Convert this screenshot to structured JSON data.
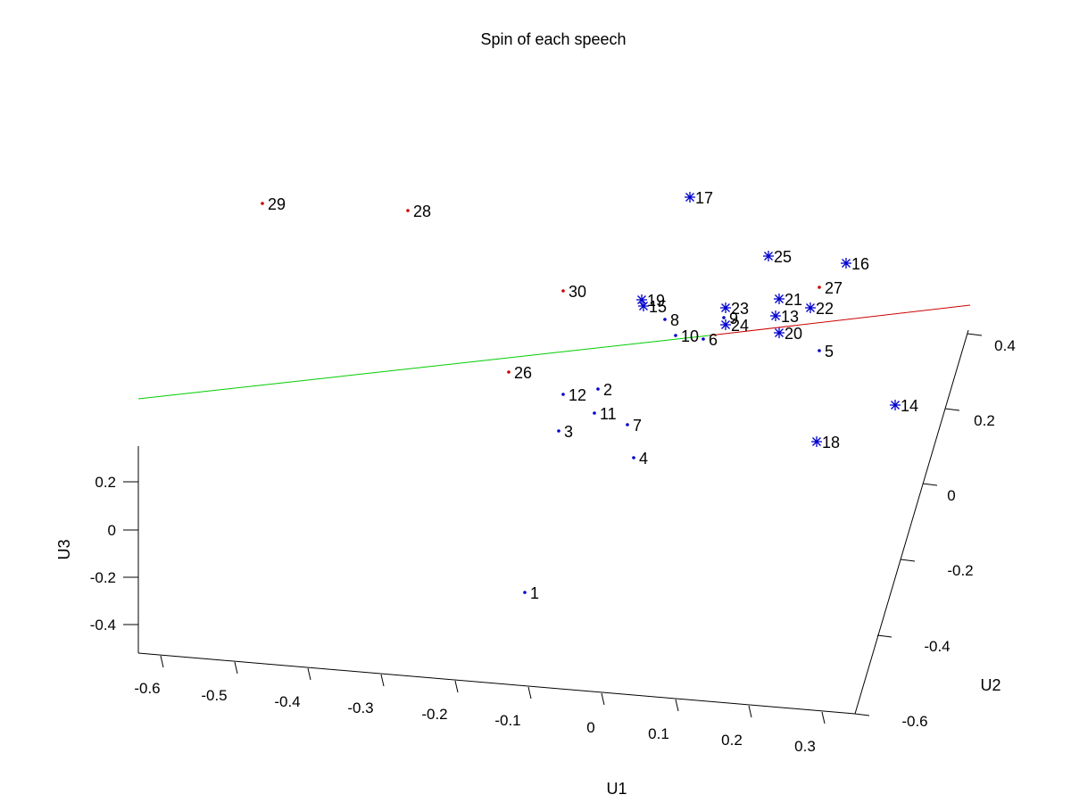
{
  "chart_data": {
    "type": "scatter",
    "title": "Spin of each speech",
    "xlabel": "U1",
    "ylabel": "U2",
    "zlabel": "U3",
    "x_ticks": [
      "-0.6",
      "-0.5",
      "-0.4",
      "-0.3",
      "-0.2",
      "-0.1",
      "0",
      "0.1",
      "0.2",
      "0.3"
    ],
    "y_ticks": [
      "-0.6",
      "-0.4",
      "-0.2",
      "0",
      "0.2",
      "0.4"
    ],
    "z_ticks": [
      "0.2",
      "0",
      "-0.2",
      "-0.4"
    ],
    "view": "3d",
    "grid": false,
    "colors": {
      "dot_blue": "#0000cc",
      "dot_red": "#cc0000",
      "star_blue": "#0000cc",
      "line_green": "#00cc00",
      "line_red": "#cc0000",
      "axes": "#000000"
    },
    "points": [
      {
        "label": "1",
        "marker": "dot",
        "color": "blue"
      },
      {
        "label": "2",
        "marker": "dot",
        "color": "blue"
      },
      {
        "label": "3",
        "marker": "dot",
        "color": "blue"
      },
      {
        "label": "4",
        "marker": "dot",
        "color": "blue"
      },
      {
        "label": "5",
        "marker": "dot",
        "color": "blue"
      },
      {
        "label": "6",
        "marker": "dot",
        "color": "blue"
      },
      {
        "label": "7",
        "marker": "dot",
        "color": "blue"
      },
      {
        "label": "8",
        "marker": "dot",
        "color": "blue"
      },
      {
        "label": "9",
        "marker": "dot",
        "color": "blue"
      },
      {
        "label": "10",
        "marker": "dot",
        "color": "blue"
      },
      {
        "label": "11",
        "marker": "dot",
        "color": "blue"
      },
      {
        "label": "12",
        "marker": "dot",
        "color": "blue"
      },
      {
        "label": "13",
        "marker": "star",
        "color": "blue"
      },
      {
        "label": "14",
        "marker": "star",
        "color": "blue"
      },
      {
        "label": "15",
        "marker": "star",
        "color": "blue"
      },
      {
        "label": "16",
        "marker": "star",
        "color": "blue"
      },
      {
        "label": "17",
        "marker": "star",
        "color": "blue"
      },
      {
        "label": "18",
        "marker": "star",
        "color": "blue"
      },
      {
        "label": "19",
        "marker": "star",
        "color": "blue"
      },
      {
        "label": "20",
        "marker": "star",
        "color": "blue"
      },
      {
        "label": "21",
        "marker": "star",
        "color": "blue"
      },
      {
        "label": "22",
        "marker": "star",
        "color": "blue"
      },
      {
        "label": "23",
        "marker": "star",
        "color": "blue"
      },
      {
        "label": "24",
        "marker": "star",
        "color": "blue"
      },
      {
        "label": "25",
        "marker": "star",
        "color": "blue"
      },
      {
        "label": "26",
        "marker": "dot",
        "color": "red"
      },
      {
        "label": "27",
        "marker": "dot",
        "color": "red"
      },
      {
        "label": "28",
        "marker": "dot",
        "color": "red"
      },
      {
        "label": "29",
        "marker": "dot",
        "color": "red"
      },
      {
        "label": "30",
        "marker": "dot",
        "color": "red"
      }
    ]
  }
}
